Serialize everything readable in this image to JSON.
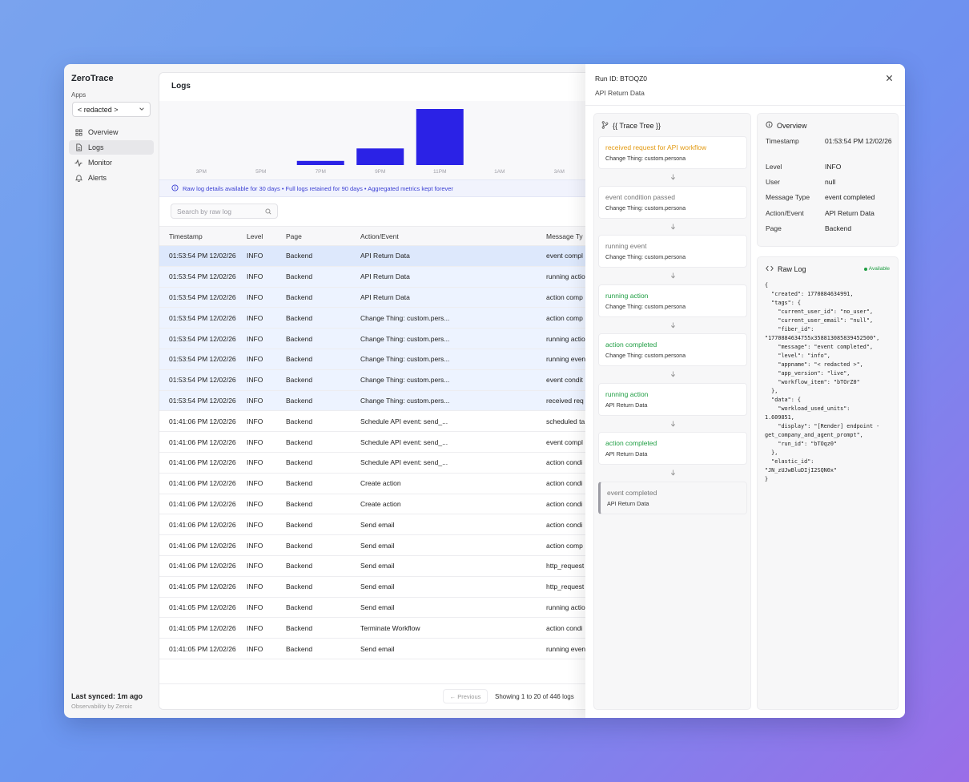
{
  "sidebar": {
    "brand": "ZeroTrace",
    "apps_label": "Apps",
    "app_selected": "< redacted >",
    "nav": [
      {
        "label": "Overview",
        "icon": "grid-icon"
      },
      {
        "label": "Logs",
        "icon": "file-icon"
      },
      {
        "label": "Monitor",
        "icon": "activity-icon"
      },
      {
        "label": "Alerts",
        "icon": "bell-icon"
      }
    ],
    "synced": "Last synced: 1m ago",
    "footer": "Observability by Zeroic"
  },
  "main": {
    "title": "Logs",
    "notice": "Raw log details available for 30 days • Full logs retained for 90 days • Aggregated metrics kept forever",
    "search_placeholder": "Search by raw log",
    "columns": [
      "Timestamp",
      "Level",
      "Page",
      "Action/Event",
      "Message Ty"
    ],
    "rows": [
      {
        "ts": "01:53:54 PM 12/02/26",
        "level": "INFO",
        "page": "Backend",
        "action": "API Return Data",
        "msg": "event compl"
      },
      {
        "ts": "01:53:54 PM 12/02/26",
        "level": "INFO",
        "page": "Backend",
        "action": "API Return Data",
        "msg": "running actio"
      },
      {
        "ts": "01:53:54 PM 12/02/26",
        "level": "INFO",
        "page": "Backend",
        "action": "API Return Data",
        "msg": "action comp"
      },
      {
        "ts": "01:53:54 PM 12/02/26",
        "level": "INFO",
        "page": "Backend",
        "action": "Change Thing: custom.pers...",
        "msg": "action comp"
      },
      {
        "ts": "01:53:54 PM 12/02/26",
        "level": "INFO",
        "page": "Backend",
        "action": "Change Thing: custom.pers...",
        "msg": "running actio"
      },
      {
        "ts": "01:53:54 PM 12/02/26",
        "level": "INFO",
        "page": "Backend",
        "action": "Change Thing: custom.pers...",
        "msg": "running even"
      },
      {
        "ts": "01:53:54 PM 12/02/26",
        "level": "INFO",
        "page": "Backend",
        "action": "Change Thing: custom.pers...",
        "msg": "event condit"
      },
      {
        "ts": "01:53:54 PM 12/02/26",
        "level": "INFO",
        "page": "Backend",
        "action": "Change Thing: custom.pers...",
        "msg": "received req"
      },
      {
        "ts": "01:41:06 PM 12/02/26",
        "level": "INFO",
        "page": "Backend",
        "action": "Schedule API event: send_...",
        "msg": "scheduled ta"
      },
      {
        "ts": "01:41:06 PM 12/02/26",
        "level": "INFO",
        "page": "Backend",
        "action": "Schedule API event: send_...",
        "msg": "event compl"
      },
      {
        "ts": "01:41:06 PM 12/02/26",
        "level": "INFO",
        "page": "Backend",
        "action": "Schedule API event: send_...",
        "msg": "action condi"
      },
      {
        "ts": "01:41:06 PM 12/02/26",
        "level": "INFO",
        "page": "Backend",
        "action": "Create action",
        "msg": "action condi"
      },
      {
        "ts": "01:41:06 PM 12/02/26",
        "level": "INFO",
        "page": "Backend",
        "action": "Create action",
        "msg": "action condi"
      },
      {
        "ts": "01:41:06 PM 12/02/26",
        "level": "INFO",
        "page": "Backend",
        "action": "Send email",
        "msg": "action condi"
      },
      {
        "ts": "01:41:06 PM 12/02/26",
        "level": "INFO",
        "page": "Backend",
        "action": "Send email",
        "msg": "action comp"
      },
      {
        "ts": "01:41:06 PM 12/02/26",
        "level": "INFO",
        "page": "Backend",
        "action": "Send email",
        "msg": "http_request"
      },
      {
        "ts": "01:41:05 PM 12/02/26",
        "level": "INFO",
        "page": "Backend",
        "action": "Send email",
        "msg": "http_request"
      },
      {
        "ts": "01:41:05 PM 12/02/26",
        "level": "INFO",
        "page": "Backend",
        "action": "Send email",
        "msg": "running actio"
      },
      {
        "ts": "01:41:05 PM 12/02/26",
        "level": "INFO",
        "page": "Backend",
        "action": "Terminate Workflow",
        "msg": "action condi"
      },
      {
        "ts": "01:41:05 PM 12/02/26",
        "level": "INFO",
        "page": "Backend",
        "action": "Send email",
        "msg": "running even"
      }
    ],
    "prev_label": "← Previous",
    "showing": "Showing 1 to 20 of 446 logs"
  },
  "chart_data": {
    "type": "bar",
    "categories": [
      "3PM",
      "5PM",
      "7PM",
      "9PM",
      "11PM",
      "1AM",
      "3AM"
    ],
    "values": [
      0,
      0,
      2,
      8,
      27,
      0,
      0
    ],
    "bar_color": "#2b22e6"
  },
  "detail": {
    "run_id": "Run ID: BTOQZ0",
    "subtitle": "API Return Data",
    "trace_title": "{{ Trace Tree }}",
    "steps": [
      {
        "title": "received request for API workflow",
        "sub": "Change Thing: custom.persona",
        "tone": "orange"
      },
      {
        "title": "event condition passed",
        "sub": "Change Thing: custom.persona",
        "tone": "gray"
      },
      {
        "title": "running event",
        "sub": "Change Thing: custom.persona",
        "tone": "gray"
      },
      {
        "title": "running action",
        "sub": "Change Thing: custom.persona",
        "tone": "green"
      },
      {
        "title": "action completed",
        "sub": "Change Thing: custom.persona",
        "tone": "green"
      },
      {
        "title": "running action",
        "sub": "API Return Data",
        "tone": "green"
      },
      {
        "title": "action completed",
        "sub": "API Return Data",
        "tone": "green"
      },
      {
        "title": "event completed",
        "sub": "API Return Data",
        "tone": "gray"
      }
    ],
    "overview_title": "Overview",
    "overview": [
      {
        "label": "Timestamp",
        "value": "01:53:54 PM 12/02/26"
      },
      {
        "label": "Level",
        "value": "INFO"
      },
      {
        "label": "User",
        "value": "null"
      },
      {
        "label": "Message Type",
        "value": "event completed"
      },
      {
        "label": "Action/Event",
        "value": "API Return Data"
      },
      {
        "label": "Page",
        "value": "Backend"
      }
    ],
    "rawlog_title": "Raw Log",
    "available": "Available",
    "rawlog": "{\n  \"created\": 1770884634991,\n  \"tags\": {\n    \"current_user_id\": \"no_user\",\n    \"current_user_email\": \"null\",\n    \"fiber_id\":\n\"1770884634755x358813085839452500\",\n    \"message\": \"event completed\",\n    \"level\": \"info\",\n    \"appname\": \"< redacted >\",\n    \"app_version\": \"live\",\n    \"workflow_item\": \"bTOrZ0\"\n  },\n  \"data\": {\n    \"workload_used_units\":\n1.609851,\n    \"display\": \"[Render] endpoint -\nget_company_and_agent_prompt\",\n    \"run_id\": \"bTOqz0\"\n  },\n  \"elastic_id\":\n\"JN_zUJwBluDIjI2SQN0x\"\n}"
  }
}
